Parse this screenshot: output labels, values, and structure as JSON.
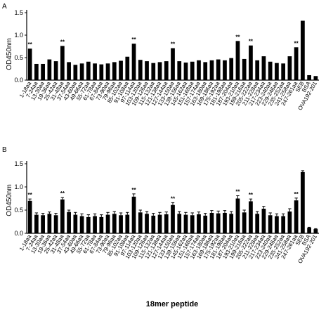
{
  "figure": {
    "x_title": "18mer peptide",
    "colors": {
      "bar": "#000000",
      "axis": "#000000",
      "background": "#ffffff"
    }
  },
  "chart_data": [
    {
      "type": "bar",
      "panel_label": "A",
      "ylabel": "OD450nm",
      "ylim": [
        0,
        1.5
      ],
      "yticks": [
        "0.0",
        "0.5",
        "1.0",
        "1.5"
      ],
      "error_bars": false,
      "categories": [
        "1-18aa",
        "7-24aa",
        "13-30aa",
        "19-36aa",
        "25-42aa",
        "31-48aa",
        "37-54aa",
        "43-60aa",
        "49-66aa",
        "55-72aa",
        "61-78aa",
        "67-84aa",
        "73-90aa",
        "79-96aa",
        "85-102aa",
        "91-108aa",
        "97-114aa",
        "103-120aa",
        "109-126aa",
        "115-132aa",
        "121-138aa",
        "127-144aa",
        "133-150aa",
        "139-156aa",
        "145-162aa",
        "151-168aa",
        "157-174aa",
        "163-180aa",
        "169-186aa",
        "175-192aa",
        "181-198aa",
        "187-204aa",
        "193-210aa",
        "199-216aa",
        "205-222aa",
        "211-228aa",
        "217-234aa",
        "223-240aa",
        "229-246aa",
        "235-252aa",
        "241-258aa",
        "247-261aa",
        "SEB",
        "BSA",
        "OVA192-201"
      ],
      "values": [
        0.7,
        0.36,
        0.36,
        0.46,
        0.42,
        0.76,
        0.4,
        0.34,
        0.37,
        0.41,
        0.37,
        0.35,
        0.37,
        0.4,
        0.43,
        0.52,
        0.81,
        0.45,
        0.42,
        0.38,
        0.4,
        0.42,
        0.71,
        0.42,
        0.39,
        0.41,
        0.44,
        0.4,
        0.44,
        0.46,
        0.44,
        0.49,
        0.87,
        0.47,
        0.77,
        0.44,
        0.53,
        0.41,
        0.38,
        0.37,
        0.53,
        0.73,
        1.32,
        0.11,
        0.09
      ],
      "significance": [
        0,
        5,
        16,
        22,
        32,
        34,
        41
      ],
      "significance_label": "**"
    },
    {
      "type": "bar",
      "panel_label": "B",
      "ylabel": "OD450nm",
      "ylim": [
        0,
        1.5
      ],
      "yticks": [
        "0.0",
        "0.5",
        "1.0",
        "1.5"
      ],
      "error_bars": true,
      "categories": [
        "1-18aa",
        "7-24aa",
        "13-30aa",
        "19-36aa",
        "25-42aa",
        "31-48aa",
        "37-54aa",
        "43-60aa",
        "49-66aa",
        "55-72aa",
        "61-78aa",
        "67-84aa",
        "73-90aa",
        "79-96aa",
        "85-102aa",
        "91-108aa",
        "97-114aa",
        "103-120aa",
        "109-126aa",
        "115-132aa",
        "121-138aa",
        "127-144aa",
        "133-150aa",
        "139-156aa",
        "145-162aa",
        "151-168aa",
        "157-174aa",
        "163-180aa",
        "169-186aa",
        "175-192aa",
        "181-198aa",
        "187-204aa",
        "193-210aa",
        "199-216aa",
        "205-222aa",
        "211-228aa",
        "217-234aa",
        "223-240aa",
        "229-246aa",
        "235-252aa",
        "241-258aa",
        "247-261aa",
        "SEB",
        "BSA",
        "OVA192-201"
      ],
      "values": [
        0.7,
        0.4,
        0.39,
        0.42,
        0.39,
        0.73,
        0.46,
        0.4,
        0.37,
        0.35,
        0.37,
        0.35,
        0.4,
        0.42,
        0.39,
        0.4,
        0.79,
        0.45,
        0.42,
        0.38,
        0.4,
        0.41,
        0.61,
        0.42,
        0.4,
        0.39,
        0.41,
        0.38,
        0.44,
        0.43,
        0.44,
        0.42,
        0.75,
        0.45,
        0.69,
        0.42,
        0.53,
        0.39,
        0.37,
        0.37,
        0.47,
        0.71,
        1.32,
        0.12,
        0.09
      ],
      "errors": [
        0.04,
        0.04,
        0.04,
        0.04,
        0.04,
        0.04,
        0.04,
        0.05,
        0.05,
        0.05,
        0.05,
        0.05,
        0.05,
        0.05,
        0.05,
        0.05,
        0.06,
        0.05,
        0.05,
        0.05,
        0.05,
        0.05,
        0.05,
        0.05,
        0.05,
        0.05,
        0.05,
        0.05,
        0.05,
        0.05,
        0.05,
        0.05,
        0.06,
        0.05,
        0.05,
        0.05,
        0.05,
        0.05,
        0.05,
        0.05,
        0.06,
        0.05,
        0.03,
        0.01,
        0.01
      ],
      "significance": [
        0,
        5,
        16,
        22,
        32,
        34,
        41
      ],
      "significance_label": "**"
    }
  ]
}
